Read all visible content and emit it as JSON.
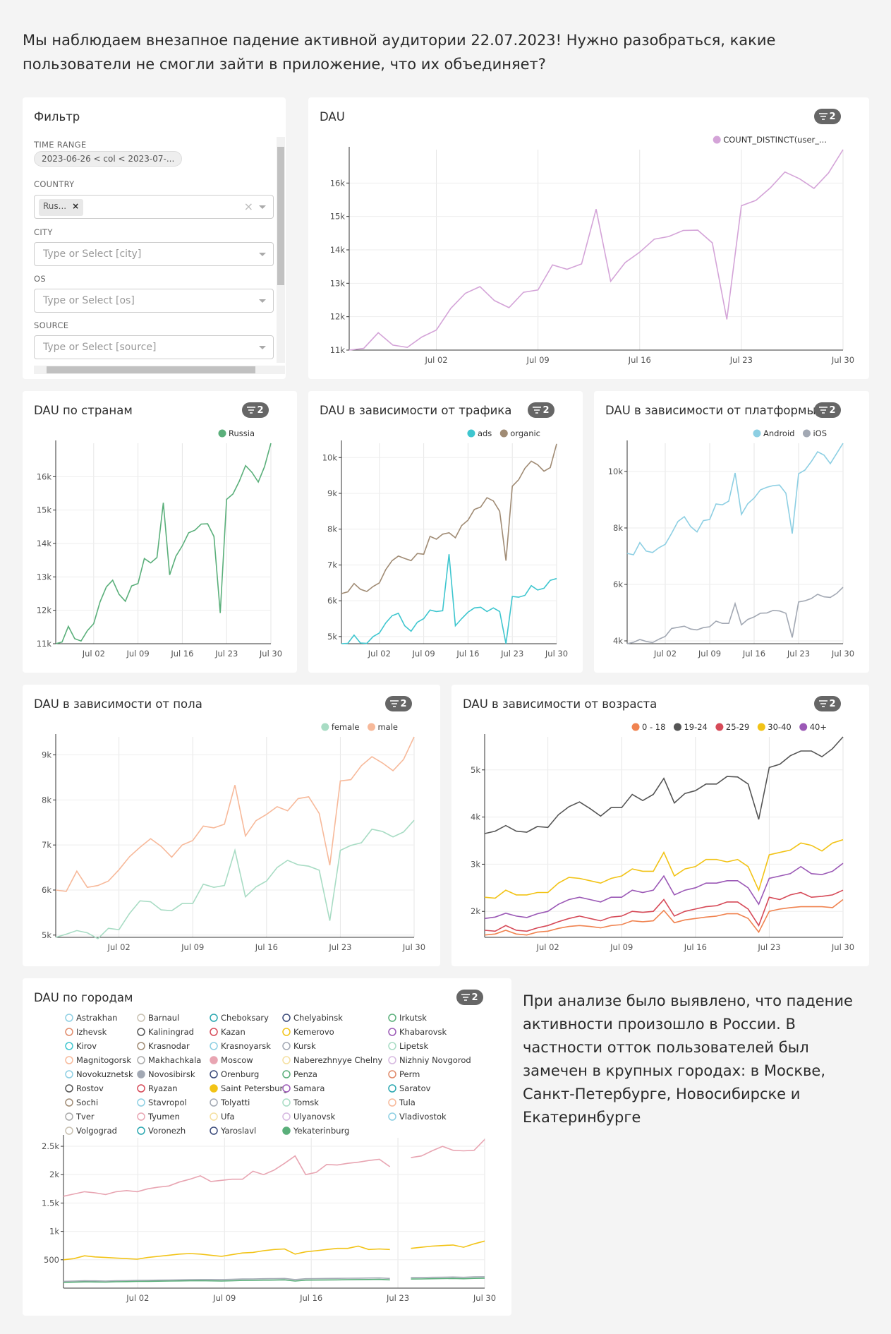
{
  "intro": "Мы наблюдаем внезапное падение активной аудитории 22.07.2023! Нужно разобраться, какие пользователи не смогли зайти в приложение, что их объединяет?",
  "note": "При анализе было выявлено, что падение активности произошло в России. В частности отток пользователей был замечен в крупных городах: в Москве, Санкт-Петербурге, Новосибирске и Екатеринбурге",
  "badge_count": "2",
  "filter": {
    "title": "Фильтр",
    "time_range_label": "TIME RANGE",
    "time_range_value": "2023-06-26 < col < 2023-07-...",
    "country_label": "COUNTRY",
    "country_tag": "Rus...",
    "country_tag_remove": "×",
    "clear": "×",
    "city_label": "CITY",
    "city_placeholder": "Type or Select [city]",
    "os_label": "OS",
    "os_placeholder": "Type or Select [os]",
    "source_label": "SOURCE",
    "source_placeholder": "Type or Select [source]"
  },
  "x_ticks": [
    "Jul 02",
    "Jul 09",
    "Jul 16",
    "Jul 23",
    "Jul 30"
  ],
  "chart_data": [
    {
      "id": "dau",
      "type": "line",
      "title": "DAU",
      "x_start": "2023-06-26",
      "x_end": "2023-07-30",
      "ylim": [
        11000,
        17000
      ],
      "yticks": [
        11000,
        12000,
        13000,
        14000,
        15000,
        16000
      ],
      "ytick_labels": [
        "11k",
        "12k",
        "13k",
        "14k",
        "15k",
        "16k"
      ],
      "series": [
        {
          "name": "COUNT_DISTINCT(user_...",
          "color": "#d4a4d8",
          "values": [
            11000,
            11050,
            11520,
            11150,
            11080,
            11390,
            11600,
            12250,
            12700,
            12900,
            12480,
            12270,
            12730,
            12800,
            13550,
            13420,
            13580,
            15220,
            13060,
            13620,
            13930,
            14320,
            14400,
            14580,
            14590,
            14210,
            11920,
            15320,
            15480,
            15860,
            16330,
            16130,
            15840,
            16300,
            17000
          ]
        }
      ]
    },
    {
      "id": "country",
      "type": "line",
      "title": "DAU по странам",
      "x_start": "2023-06-26",
      "x_end": "2023-07-30",
      "ylim": [
        11000,
        17000
      ],
      "yticks": [
        11000,
        12000,
        13000,
        14000,
        15000,
        16000
      ],
      "ytick_labels": [
        "11k",
        "12k",
        "13k",
        "14k",
        "15k",
        "16k"
      ],
      "series": [
        {
          "name": "Russia",
          "color": "#5aaf7a",
          "values": [
            11000,
            11050,
            11520,
            11150,
            11080,
            11390,
            11600,
            12250,
            12700,
            12900,
            12480,
            12270,
            12730,
            12800,
            13550,
            13420,
            13580,
            15220,
            13060,
            13620,
            13930,
            14320,
            14400,
            14580,
            14590,
            14210,
            11920,
            15320,
            15480,
            15860,
            16330,
            16130,
            15840,
            16300,
            17000
          ]
        }
      ]
    },
    {
      "id": "traffic",
      "type": "line",
      "title": "DAU в зависимости от трафика",
      "x_start": "2023-06-26",
      "x_end": "2023-07-30",
      "ylim": [
        4800,
        10400
      ],
      "yticks": [
        5000,
        6000,
        7000,
        8000,
        9000,
        10000
      ],
      "ytick_labels": [
        "5k",
        "6k",
        "7k",
        "8k",
        "9k",
        "10k"
      ],
      "series": [
        {
          "name": "ads",
          "color": "#3ec6cf",
          "values": [
            4800,
            4810,
            5040,
            4820,
            4810,
            5000,
            5100,
            5380,
            5580,
            5650,
            5300,
            5150,
            5400,
            5500,
            5740,
            5700,
            5720,
            7300,
            5300,
            5500,
            5680,
            5800,
            5820,
            5700,
            5800,
            5700,
            4800,
            6120,
            6100,
            6150,
            6420,
            6300,
            6350,
            6570,
            6620
          ]
        },
        {
          "name": "organic",
          "color": "#a08b74",
          "values": [
            6200,
            6250,
            6480,
            6320,
            6260,
            6400,
            6500,
            6870,
            7120,
            7250,
            7180,
            7120,
            7320,
            7300,
            7800,
            7720,
            7860,
            7900,
            7760,
            8100,
            8250,
            8550,
            8620,
            8880,
            8790,
            8500,
            7120,
            9200,
            9380,
            9700,
            9900,
            9800,
            9620,
            9720,
            10380
          ]
        }
      ]
    },
    {
      "id": "platform",
      "type": "line",
      "title": "DAU в зависимости от платформы",
      "x_start": "2023-06-26",
      "x_end": "2023-07-30",
      "ylim": [
        3900,
        11000
      ],
      "yticks": [
        4000,
        6000,
        8000,
        10000
      ],
      "ytick_labels": [
        "4k",
        "6k",
        "8k",
        "10k"
      ],
      "series": [
        {
          "name": "Android",
          "color": "#8dcfe3",
          "values": [
            7100,
            7050,
            7480,
            7180,
            7130,
            7300,
            7420,
            7810,
            8230,
            8400,
            8050,
            7860,
            8260,
            8300,
            8850,
            8820,
            8950,
            9950,
            8480,
            8860,
            9060,
            9350,
            9440,
            9500,
            9520,
            9230,
            7800,
            9920,
            10050,
            10350,
            10700,
            10580,
            10280,
            10640,
            11000
          ]
        },
        {
          "name": "iOS",
          "color": "#a2a8b3",
          "values": [
            3900,
            3950,
            4050,
            3980,
            3940,
            4060,
            4160,
            4440,
            4480,
            4520,
            4420,
            4390,
            4470,
            4500,
            4700,
            4620,
            4620,
            5320,
            4570,
            4760,
            4850,
            4980,
            4990,
            5080,
            5060,
            4980,
            4120,
            5380,
            5420,
            5500,
            5650,
            5560,
            5540,
            5680,
            5900
          ]
        }
      ]
    },
    {
      "id": "gender",
      "type": "line",
      "title": "DAU в зависимости от пола",
      "x_start": "2023-06-26",
      "x_end": "2023-07-30",
      "ylim": [
        4950,
        9400
      ],
      "yticks": [
        5000,
        6000,
        7000,
        8000,
        9000
      ],
      "ytick_labels": [
        "5k",
        "6k",
        "7k",
        "8k",
        "9k"
      ],
      "series": [
        {
          "name": "female",
          "color": "#a8dcc4",
          "values": [
            4950,
            5020,
            5100,
            5050,
            4920,
            5150,
            5120,
            5480,
            5760,
            5740,
            5560,
            5540,
            5700,
            5700,
            6130,
            6060,
            6100,
            6880,
            5850,
            6070,
            6200,
            6500,
            6660,
            6560,
            6530,
            6440,
            5320,
            6880,
            6990,
            7050,
            7350,
            7300,
            7180,
            7290,
            7550
          ]
        },
        {
          "name": "male",
          "color": "#f7b99a",
          "values": [
            6000,
            5970,
            6420,
            6060,
            6100,
            6200,
            6450,
            6740,
            6950,
            7140,
            6970,
            6730,
            7000,
            7100,
            7420,
            7380,
            7460,
            8330,
            7200,
            7540,
            7680,
            7850,
            7760,
            8030,
            8070,
            7700,
            6550,
            8420,
            8450,
            8760,
            8960,
            8820,
            8650,
            8900,
            9400
          ]
        }
      ]
    },
    {
      "id": "age",
      "type": "line",
      "title": "DAU в зависимости от возраста",
      "x_start": "2023-06-26",
      "x_end": "2023-07-30",
      "ylim": [
        1450,
        5700
      ],
      "yticks": [
        2000,
        3000,
        4000,
        5000
      ],
      "ytick_labels": [
        "2k",
        "3k",
        "4k",
        "5k"
      ],
      "series": [
        {
          "name": "0 - 18",
          "color": "#f08350",
          "values": [
            1500,
            1520,
            1600,
            1520,
            1500,
            1560,
            1580,
            1640,
            1680,
            1700,
            1680,
            1650,
            1700,
            1720,
            1800,
            1780,
            1800,
            2020,
            1760,
            1820,
            1850,
            1880,
            1900,
            1950,
            1950,
            1850,
            1560,
            2000,
            2050,
            2080,
            2100,
            2100,
            2100,
            2080,
            2250
          ]
        },
        {
          "name": "19-24",
          "color": "#555555",
          "values": [
            3650,
            3700,
            3820,
            3700,
            3680,
            3800,
            3780,
            4050,
            4220,
            4320,
            4180,
            4020,
            4200,
            4200,
            4480,
            4350,
            4480,
            4820,
            4300,
            4500,
            4560,
            4700,
            4700,
            4860,
            4850,
            4700,
            3950,
            5050,
            5120,
            5300,
            5400,
            5400,
            5280,
            5450,
            5700
          ]
        },
        {
          "name": "25-29",
          "color": "#d64a58",
          "values": [
            1600,
            1580,
            1700,
            1600,
            1580,
            1650,
            1700,
            1780,
            1850,
            1900,
            1850,
            1800,
            1880,
            1900,
            2000,
            1980,
            2000,
            2250,
            1900,
            2000,
            2050,
            2100,
            2120,
            2200,
            2200,
            2050,
            1700,
            2300,
            2250,
            2350,
            2400,
            2300,
            2320,
            2350,
            2450
          ]
        },
        {
          "name": "30-40",
          "color": "#f2c316",
          "values": [
            2300,
            2280,
            2450,
            2350,
            2350,
            2400,
            2400,
            2600,
            2720,
            2700,
            2650,
            2600,
            2700,
            2750,
            2900,
            2850,
            2850,
            3250,
            2750,
            2900,
            2950,
            3100,
            3100,
            3050,
            3100,
            2950,
            2450,
            3200,
            3250,
            3300,
            3450,
            3400,
            3280,
            3450,
            3520
          ]
        },
        {
          "name": "40+",
          "color": "#9b59b6",
          "values": [
            1850,
            1880,
            1960,
            1900,
            1870,
            1950,
            2000,
            2150,
            2250,
            2300,
            2250,
            2200,
            2300,
            2300,
            2450,
            2400,
            2450,
            2750,
            2350,
            2450,
            2500,
            2600,
            2600,
            2650,
            2650,
            2500,
            2150,
            2700,
            2750,
            2800,
            2950,
            2800,
            2780,
            2850,
            3020
          ]
        }
      ]
    },
    {
      "id": "cities",
      "type": "line",
      "title": "DAU по городам",
      "x_start": "2023-06-26",
      "x_end": "2023-07-30",
      "ylim": [
        0,
        2650
      ],
      "yticks": [
        500,
        1000,
        1500,
        2000,
        2500
      ],
      "ytick_labels": [
        "500",
        "1k",
        "1.5k",
        "2k",
        "2.5k"
      ],
      "gap_index": 26,
      "series": [
        {
          "name": "Moscow",
          "color": "#e8a5b2",
          "values": [
            1620,
            1660,
            1700,
            1680,
            1650,
            1700,
            1720,
            1700,
            1750,
            1780,
            1800,
            1870,
            1920,
            1980,
            1880,
            1900,
            1920,
            1920,
            2060,
            2000,
            2080,
            2200,
            2330,
            2000,
            2040,
            2180,
            2170,
            2200,
            2220,
            2250,
            2270,
            2140,
            null,
            2300,
            2330,
            2420,
            2500,
            2430,
            2420,
            2430,
            2620
          ]
        },
        {
          "name": "Saint Petersburg",
          "color": "#f2c316",
          "values": [
            500,
            520,
            570,
            550,
            540,
            530,
            520,
            510,
            540,
            560,
            580,
            600,
            610,
            600,
            580,
            560,
            590,
            620,
            630,
            660,
            680,
            690,
            600,
            640,
            660,
            680,
            700,
            700,
            740,
            680,
            690,
            680,
            null,
            700,
            720,
            740,
            750,
            760,
            720,
            780,
            830
          ]
        },
        {
          "name": "Novosibirsk",
          "color": "#a2a8b3",
          "values": [
            120,
            125,
            130,
            128,
            125,
            130,
            132,
            135,
            138,
            140,
            142,
            145,
            148,
            150,
            152,
            150,
            155,
            160,
            162,
            165,
            168,
            170,
            150,
            165,
            168,
            170,
            172,
            174,
            176,
            178,
            180,
            170,
            null,
            185,
            188,
            190,
            192,
            195,
            190,
            198,
            200
          ]
        },
        {
          "name": "Yekaterinburg",
          "color": "#5aaf7a",
          "values": [
            100,
            105,
            110,
            108,
            106,
            112,
            114,
            118,
            120,
            122,
            124,
            127,
            130,
            132,
            128,
            126,
            130,
            135,
            138,
            140,
            142,
            145,
            125,
            140,
            142,
            144,
            146,
            148,
            150,
            152,
            154,
            145,
            null,
            160,
            162,
            165,
            168,
            170,
            165,
            172,
            175
          ]
        }
      ],
      "legend": [
        [
          "Astrakhan",
          "Barnaul",
          "Cheboksary",
          "Chelyabinsk",
          "Irkutsk"
        ],
        [
          "Izhevsk",
          "Kaliningrad",
          "Kazan",
          "Kemerovo",
          "Khabarovsk"
        ],
        [
          "Kirov",
          "Krasnodar",
          "Krasnoyarsk",
          "Kursk",
          "Lipetsk"
        ],
        [
          "Magnitogorsk",
          "Makhachkala",
          "Moscow",
          "Naberezhnyye Chelny",
          "Nizhniy Novgorod"
        ],
        [
          "Novokuznetsk",
          "Novosibirsk",
          "Orenburg",
          "Penza",
          "Perm"
        ],
        [
          "Rostov",
          "Ryazan",
          "Saint Petersburg",
          "Samara",
          "Saratov"
        ],
        [
          "Sochi",
          "Stavropol",
          "Tolyatti",
          "Tomsk",
          "Tula"
        ],
        [
          "Tver",
          "Tyumen",
          "Ufa",
          "Ulyanovsk",
          "Vladivostok"
        ],
        [
          "Volgograd",
          "Voronezh",
          "Yaroslavl",
          "Yekaterinburg"
        ]
      ],
      "legend_colors": [
        [
          "#8dcfe3",
          "#c8c0b0",
          "#2aa7b0",
          "#3a4a7a",
          "#5aaf7a"
        ],
        [
          "#e08a6a",
          "#555555",
          "#d64a58",
          "#f2c316",
          "#9b59b6"
        ],
        [
          "#3ec6cf",
          "#a08b74",
          "#8dcfe3",
          "#a2a8b3",
          "#a8dcc4"
        ],
        [
          "#f7b99a",
          "#aaaaaa",
          "#e8a5b2",
          "#f5e0a0",
          "#d6b8e0"
        ],
        [
          "#8dcfe3",
          "#a2a8b3",
          "#3a4a7a",
          "#5aaf7a",
          "#e08a6a"
        ],
        [
          "#555555",
          "#d64a58",
          "#f2c316",
          "#9b59b6",
          "#2aa7b0"
        ],
        [
          "#a08b74",
          "#8dcfe3",
          "#a2a8b3",
          "#a8dcc4",
          "#f7b99a"
        ],
        [
          "#aaaaaa",
          "#e8a5b2",
          "#f5e0a0",
          "#d6b8e0",
          "#8dcfe3"
        ],
        [
          "#c8c0b0",
          "#2aa7b0",
          "#3a4a7a",
          "#5aaf7a"
        ]
      ],
      "legend_filled": [
        "Moscow",
        "Saint Petersburg",
        "Novosibirsk",
        "Yekaterinburg"
      ]
    }
  ]
}
